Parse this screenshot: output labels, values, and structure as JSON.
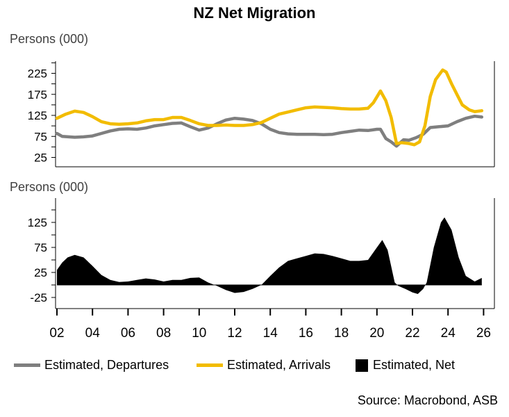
{
  "chart_data": [
    {
      "type": "line",
      "title": "NZ Net Migration",
      "ylabel": "Persons (000)",
      "ylim": [
        0,
        255
      ],
      "yticks": [
        "225",
        "175",
        "125",
        "75",
        "25"
      ],
      "ytick_values": [
        225,
        175,
        125,
        75,
        25
      ],
      "xlim": [
        2002,
        2026.5
      ],
      "grid": false,
      "series": [
        {
          "name": "Estimated, Departures",
          "color": "#7f7f7f",
          "x": [
            2002,
            2002.3,
            2003,
            2003.5,
            2004,
            2004.5,
            2005,
            2005.5,
            2006,
            2006.5,
            2007,
            2007.5,
            2008,
            2008.5,
            2009,
            2009.5,
            2010,
            2010.5,
            2011,
            2011.5,
            2012,
            2012.5,
            2013,
            2013.5,
            2014,
            2014.5,
            2015,
            2015.5,
            2016,
            2016.5,
            2017,
            2017.5,
            2018,
            2018.5,
            2019,
            2019.5,
            2020,
            2020.2,
            2020.5,
            2020.8,
            2021.1,
            2021.5,
            2021.8,
            2022.2,
            2022.6,
            2023,
            2023.5,
            2024,
            2024.5,
            2025,
            2025.5,
            2025.9
          ],
          "values": [
            82,
            75,
            73,
            74,
            76,
            82,
            88,
            92,
            93,
            92,
            95,
            100,
            103,
            106,
            107,
            98,
            90,
            95,
            105,
            114,
            118,
            116,
            113,
            105,
            92,
            84,
            81,
            80,
            80,
            80,
            79,
            80,
            84,
            87,
            90,
            89,
            92,
            92,
            70,
            62,
            52,
            67,
            66,
            72,
            80,
            96,
            98,
            100,
            110,
            118,
            123,
            121
          ]
        },
        {
          "name": "Estimated, Arrivals",
          "color": "#f2bc00",
          "x": [
            2002,
            2002.5,
            2003,
            2003.5,
            2004,
            2004.5,
            2005,
            2005.5,
            2006,
            2006.5,
            2007,
            2007.5,
            2008,
            2008.5,
            2009,
            2009.5,
            2010,
            2010.5,
            2011,
            2011.5,
            2012,
            2012.5,
            2013,
            2013.5,
            2014,
            2014.5,
            2015,
            2015.5,
            2016,
            2016.5,
            2017,
            2017.5,
            2018,
            2018.5,
            2019,
            2019.5,
            2019.8,
            2020.2,
            2020.5,
            2020.8,
            2021.1,
            2021.4,
            2021.8,
            2022.1,
            2022.4,
            2022.7,
            2023,
            2023.3,
            2023.7,
            2023.9,
            2024.2,
            2024.5,
            2024.8,
            2025.2,
            2025.5,
            2025.9
          ],
          "values": [
            118,
            128,
            135,
            132,
            122,
            110,
            105,
            104,
            105,
            107,
            112,
            115,
            115,
            120,
            120,
            113,
            105,
            101,
            101,
            102,
            101,
            101,
            103,
            108,
            118,
            128,
            133,
            138,
            143,
            145,
            144,
            143,
            141,
            140,
            140,
            142,
            155,
            183,
            160,
            120,
            58,
            60,
            58,
            55,
            62,
            100,
            170,
            210,
            233,
            228,
            200,
            175,
            150,
            138,
            134,
            136
          ]
        }
      ]
    },
    {
      "type": "area",
      "ylabel": "Persons (000)",
      "ylim": [
        -47,
        174
      ],
      "yticks": [
        "125",
        "75",
        "25",
        "-25"
      ],
      "ytick_values": [
        125,
        75,
        25,
        -25
      ],
      "xlim": [
        2002,
        2026.5
      ],
      "xticks": [
        "02",
        "04",
        "06",
        "08",
        "10",
        "12",
        "14",
        "16",
        "18",
        "20",
        "22",
        "24",
        "26"
      ],
      "xtick_values": [
        2002,
        2004,
        2006,
        2008,
        2010,
        2012,
        2014,
        2016,
        2018,
        2020,
        2022,
        2024,
        2026
      ],
      "grid": false,
      "series": [
        {
          "name": "Estimated, Net",
          "color": "#000000",
          "x": [
            2002,
            2002.3,
            2002.6,
            2003,
            2003.5,
            2004,
            2004.5,
            2005,
            2005.5,
            2006,
            2006.5,
            2007,
            2007.5,
            2008,
            2008.5,
            2009,
            2009.5,
            2010,
            2010.5,
            2011,
            2011.5,
            2012,
            2012.5,
            2013,
            2013.5,
            2014,
            2014.5,
            2015,
            2015.5,
            2016,
            2016.5,
            2017,
            2017.5,
            2018,
            2018.5,
            2019,
            2019.5,
            2020,
            2020.3,
            2020.6,
            2021,
            2021.2,
            2021.6,
            2022,
            2022.3,
            2022.6,
            2022.8,
            2023.2,
            2023.6,
            2023.8,
            2024.2,
            2024.6,
            2025,
            2025.5,
            2025.9
          ],
          "values": [
            30,
            45,
            55,
            60,
            55,
            38,
            20,
            10,
            6,
            7,
            10,
            13,
            11,
            7,
            10,
            10,
            14,
            15,
            5,
            -2,
            -10,
            -16,
            -14,
            -8,
            0,
            18,
            35,
            48,
            53,
            58,
            63,
            62,
            58,
            53,
            48,
            48,
            50,
            75,
            90,
            70,
            5,
            -2,
            -8,
            -15,
            -18,
            -8,
            5,
            75,
            125,
            135,
            110,
            55,
            18,
            7,
            14
          ]
        }
      ]
    }
  ],
  "legend": {
    "items": [
      {
        "label": "Estimated, Departures",
        "color": "#7f7f7f",
        "shape": "line"
      },
      {
        "label": "Estimated, Arrivals",
        "color": "#f2bc00",
        "shape": "line"
      },
      {
        "label": "Estimated, Net",
        "color": "#000000",
        "shape": "box"
      }
    ],
    "placement": "bottom"
  },
  "source": "Source: Macrobond, ASB"
}
